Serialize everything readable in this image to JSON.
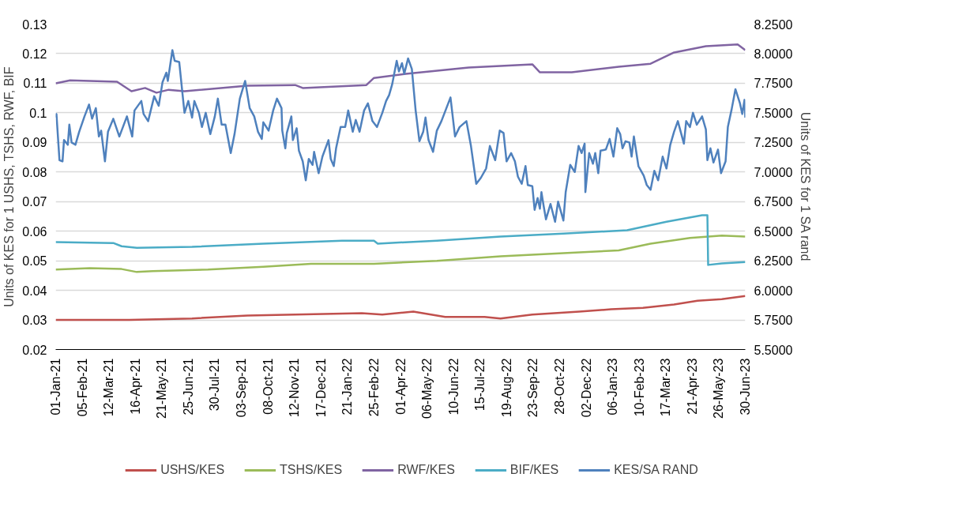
{
  "chart_data": {
    "type": "line",
    "ylabel": "Units of KES for 1 USHS, TSHS, RWF, BIF",
    "y2label": "Units of KES for 1 SA rand",
    "xlim": [
      "2021-01-01",
      "2023-06-30"
    ],
    "xticks": [
      {
        "value": "2021-01-01",
        "label": "01-Jan-21"
      },
      {
        "value": "2021-02-05",
        "label": "05-Feb-21"
      },
      {
        "value": "2021-03-12",
        "label": "12-Mar-21"
      },
      {
        "value": "2021-04-16",
        "label": "16-Apr-21"
      },
      {
        "value": "2021-05-21",
        "label": "21-May-21"
      },
      {
        "value": "2021-06-25",
        "label": "25-Jun-21"
      },
      {
        "value": "2021-07-30",
        "label": "30-Jul-21"
      },
      {
        "value": "2021-09-03",
        "label": "03-Sep-21"
      },
      {
        "value": "2021-10-08",
        "label": "08-Oct-21"
      },
      {
        "value": "2021-11-12",
        "label": "12-Nov-21"
      },
      {
        "value": "2021-12-17",
        "label": "17-Dec-21"
      },
      {
        "value": "2022-01-21",
        "label": "21-Jan-22"
      },
      {
        "value": "2022-02-25",
        "label": "25-Feb-22"
      },
      {
        "value": "2022-04-01",
        "label": "01-Apr-22"
      },
      {
        "value": "2022-05-06",
        "label": "06-May-22"
      },
      {
        "value": "2022-06-10",
        "label": "10-Jun-22"
      },
      {
        "value": "2022-07-15",
        "label": "15-Jul-22"
      },
      {
        "value": "2022-08-19",
        "label": "19-Aug-22"
      },
      {
        "value": "2022-09-23",
        "label": "23-Sep-22"
      },
      {
        "value": "2022-10-28",
        "label": "28-Oct-22"
      },
      {
        "value": "2022-12-02",
        "label": "02-Dec-22"
      },
      {
        "value": "2023-01-06",
        "label": "06-Jan-23"
      },
      {
        "value": "2023-02-10",
        "label": "10-Feb-23"
      },
      {
        "value": "2023-03-17",
        "label": "17-Mar-23"
      },
      {
        "value": "2023-04-21",
        "label": "21-Apr-23"
      },
      {
        "value": "2023-05-26",
        "label": "26-May-23"
      },
      {
        "value": "2023-06-30",
        "label": "30-Jun-23"
      }
    ],
    "ylim": [
      0.02,
      0.13
    ],
    "yticks": [
      0.02,
      0.03,
      0.04,
      0.05,
      0.06,
      0.07,
      0.08,
      0.09,
      0.1,
      0.11,
      0.12,
      0.13
    ],
    "y2lim": [
      5.5,
      8.25
    ],
    "y2ticks": [
      {
        "value": 5.5,
        "label": "5.5000"
      },
      {
        "value": 5.75,
        "label": "5.7500"
      },
      {
        "value": 6.0,
        "label": "6.0000"
      },
      {
        "value": 6.25,
        "label": "6.2500"
      },
      {
        "value": 6.5,
        "label": "6.5000"
      },
      {
        "value": 6.75,
        "label": "6.7500"
      },
      {
        "value": 7.0,
        "label": "7.0000"
      },
      {
        "value": 7.25,
        "label": "7.2500"
      },
      {
        "value": 7.5,
        "label": "7.5000"
      },
      {
        "value": 7.75,
        "label": "7.7500"
      },
      {
        "value": 8.0,
        "label": "8.0000"
      },
      {
        "value": 8.25,
        "label": "8.2500"
      }
    ],
    "grid": "y",
    "legend": "bottom",
    "line_style": "solid",
    "marker": "none",
    "series": [
      {
        "name": "USHS/KES",
        "color": "#c0504d",
        "x": [
          "2021-01-01",
          "2021-04-08",
          "2021-06-30",
          "2021-09-11",
          "2021-11-13",
          "2022-02-09",
          "2022-03-08",
          "2022-04-18",
          "2022-05-30",
          "2022-07-21",
          "2022-08-11",
          "2022-09-22",
          "2022-11-23",
          "2023-01-04",
          "2023-02-15",
          "2023-03-28",
          "2023-04-28",
          "2023-05-30",
          "2023-06-30"
        ],
        "values": [
          0.03,
          0.03,
          0.0305,
          0.0315,
          0.0318,
          0.0323,
          0.0318,
          0.0328,
          0.031,
          0.031,
          0.0305,
          0.0318,
          0.0328,
          0.0336,
          0.0341,
          0.0352,
          0.0365,
          0.037,
          0.0381
        ]
      },
      {
        "name": "TSHS/KES",
        "color": "#9bbb59",
        "x": [
          "2021-01-01",
          "2021-02-15",
          "2021-03-29",
          "2021-04-18",
          "2021-05-09",
          "2021-07-21",
          "2021-10-02",
          "2021-12-04",
          "2022-02-25",
          "2022-05-19",
          "2022-08-11",
          "2022-11-02",
          "2023-01-14",
          "2023-02-25",
          "2023-04-18",
          "2023-05-30",
          "2023-06-30"
        ],
        "values": [
          0.047,
          0.0475,
          0.0472,
          0.0462,
          0.0465,
          0.047,
          0.048,
          0.049,
          0.049,
          0.05,
          0.0515,
          0.0526,
          0.0535,
          0.0558,
          0.0577,
          0.0585,
          0.0582
        ]
      },
      {
        "name": "RWF/KES",
        "color": "#8064a2",
        "x": [
          "2021-01-01",
          "2021-01-20",
          "2021-03-23",
          "2021-04-11",
          "2021-04-29",
          "2021-05-14",
          "2021-05-30",
          "2021-06-20",
          "2021-09-11",
          "2021-11-13",
          "2021-11-23",
          "2022-02-15",
          "2022-02-25",
          "2022-04-08",
          "2022-06-30",
          "2022-09-22",
          "2022-10-02",
          "2022-11-13",
          "2023-01-14",
          "2023-02-25",
          "2023-03-28",
          "2023-05-09",
          "2023-06-20",
          "2023-06-30"
        ],
        "values": [
          0.11,
          0.111,
          0.1105,
          0.1073,
          0.1084,
          0.1068,
          0.1078,
          0.1073,
          0.1092,
          0.1094,
          0.1084,
          0.1094,
          0.1118,
          0.1132,
          0.1153,
          0.1164,
          0.1137,
          0.1137,
          0.1156,
          0.1166,
          0.1204,
          0.1225,
          0.1231,
          0.1212
        ]
      },
      {
        "name": "BIF/KES",
        "color": "#4bacc6",
        "x": [
          "2021-01-01",
          "2021-03-18",
          "2021-03-29",
          "2021-04-18",
          "2021-06-30",
          "2021-10-02",
          "2022-01-14",
          "2022-02-25",
          "2022-03-02",
          "2022-05-19",
          "2022-08-11",
          "2022-11-02",
          "2023-01-25",
          "2023-03-18",
          "2023-05-04",
          "2023-05-11",
          "2023-05-12",
          "2023-05-30",
          "2023-06-30"
        ],
        "values": [
          0.0563,
          0.056,
          0.0549,
          0.0544,
          0.0547,
          0.0558,
          0.0568,
          0.0568,
          0.0558,
          0.0568,
          0.0582,
          0.0592,
          0.0603,
          0.0632,
          0.0654,
          0.0654,
          0.0486,
          0.0491,
          0.0496
        ]
      },
      {
        "name": "KES/SA RAND",
        "color": "#4f81bd",
        "axis": "y2",
        "x": [
          "2021-01-01",
          "2021-01-02",
          "2021-01-06",
          "2021-01-10",
          "2021-01-12",
          "2021-01-17",
          "2021-01-19",
          "2021-01-22",
          "2021-01-27",
          "2021-02-01",
          "2021-02-08",
          "2021-02-14",
          "2021-02-18",
          "2021-02-23",
          "2021-02-27",
          "2021-03-02",
          "2021-03-07",
          "2021-03-11",
          "2021-03-18",
          "2021-03-26",
          "2021-04-05",
          "2021-04-12",
          "2021-04-15",
          "2021-04-24",
          "2021-04-27",
          "2021-05-03",
          "2021-05-11",
          "2021-05-17",
          "2021-05-22",
          "2021-05-27",
          "2021-05-29",
          "2021-06-04",
          "2021-06-07",
          "2021-06-13",
          "2021-06-18",
          "2021-06-20",
          "2021-06-25",
          "2021-06-30",
          "2021-07-03",
          "2021-07-09",
          "2021-07-13",
          "2021-07-18",
          "2021-07-24",
          "2021-07-30",
          "2021-08-03",
          "2021-08-08",
          "2021-08-13",
          "2021-08-20",
          "2021-08-25",
          "2021-09-01",
          "2021-09-08",
          "2021-09-14",
          "2021-09-20",
          "2021-09-25",
          "2021-09-30",
          "2021-10-02",
          "2021-10-09",
          "2021-10-15",
          "2021-10-20",
          "2021-10-26",
          "2021-10-27",
          "2021-10-31",
          "2021-11-02",
          "2021-11-08",
          "2021-11-10",
          "2021-11-15",
          "2021-11-18",
          "2021-11-23",
          "2021-11-27",
          "2021-12-01",
          "2021-12-06",
          "2021-12-08",
          "2021-12-14",
          "2021-12-19",
          "2021-12-27",
          "2021-12-30",
          "2022-01-03",
          "2022-01-06",
          "2022-01-12",
          "2022-01-18",
          "2022-01-22",
          "2022-01-28",
          "2022-02-01",
          "2022-02-06",
          "2022-02-12",
          "2022-02-17",
          "2022-02-23",
          "2022-03-01",
          "2022-03-08",
          "2022-03-13",
          "2022-03-17",
          "2022-03-21",
          "2022-03-27",
          "2022-03-30",
          "2022-04-03",
          "2022-04-06",
          "2022-04-11",
          "2022-04-16",
          "2022-04-21",
          "2022-04-26",
          "2022-05-01",
          "2022-05-04",
          "2022-05-08",
          "2022-05-14",
          "2022-05-19",
          "2022-05-25",
          "2022-05-31",
          "2022-06-06",
          "2022-06-12",
          "2022-06-18",
          "2022-06-27",
          "2022-07-03",
          "2022-07-10",
          "2022-07-16",
          "2022-07-23",
          "2022-07-28",
          "2022-08-04",
          "2022-08-10",
          "2022-08-15",
          "2022-08-19",
          "2022-08-25",
          "2022-08-30",
          "2022-09-03",
          "2022-09-08",
          "2022-09-13",
          "2022-09-16",
          "2022-09-22",
          "2022-09-25",
          "2022-09-29",
          "2022-10-02",
          "2022-10-04",
          "2022-10-07",
          "2022-10-10",
          "2022-10-16",
          "2022-10-22",
          "2022-10-26",
          "2022-11-02",
          "2022-11-05",
          "2022-11-11",
          "2022-11-17",
          "2022-11-22",
          "2022-11-26",
          "2022-11-30",
          "2022-12-01",
          "2022-12-06",
          "2022-12-11",
          "2022-12-14",
          "2022-12-18",
          "2022-12-21",
          "2022-12-28",
          "2023-01-02",
          "2023-01-07",
          "2023-01-12",
          "2023-01-16",
          "2023-01-19",
          "2023-01-23",
          "2023-01-28",
          "2023-01-31",
          "2023-02-03",
          "2023-02-09",
          "2023-02-16",
          "2023-02-20",
          "2023-02-25",
          "2023-03-02",
          "2023-03-07",
          "2023-03-13",
          "2023-03-18",
          "2023-03-23",
          "2023-03-28",
          "2023-04-02",
          "2023-04-10",
          "2023-04-13",
          "2023-04-18",
          "2023-04-22",
          "2023-04-27",
          "2023-05-04",
          "2023-05-09",
          "2023-05-11",
          "2023-05-15",
          "2023-05-19",
          "2023-05-25",
          "2023-05-29",
          "2023-06-04",
          "2023-06-07",
          "2023-06-12",
          "2023-06-17",
          "2023-06-23",
          "2023-06-26",
          "2023-06-29",
          "2023-06-30"
        ],
        "values": [
          7.46,
          7.49,
          7.1,
          7.09,
          7.27,
          7.23,
          7.4,
          7.25,
          7.23,
          7.34,
          7.47,
          7.57,
          7.45,
          7.54,
          7.3,
          7.35,
          7.09,
          7.34,
          7.45,
          7.3,
          7.47,
          7.3,
          7.52,
          7.6,
          7.49,
          7.43,
          7.64,
          7.56,
          7.76,
          7.84,
          7.77,
          8.03,
          7.94,
          7.93,
          7.62,
          7.5,
          7.6,
          7.46,
          7.6,
          7.5,
          7.38,
          7.5,
          7.32,
          7.47,
          7.62,
          7.4,
          7.4,
          7.16,
          7.32,
          7.62,
          7.77,
          7.54,
          7.47,
          7.34,
          7.28,
          7.42,
          7.35,
          7.52,
          7.62,
          7.54,
          7.35,
          7.2,
          7.33,
          7.47,
          7.27,
          7.37,
          7.18,
          7.09,
          6.93,
          7.11,
          7.06,
          7.17,
          6.99,
          7.13,
          7.27,
          7.11,
          7.05,
          7.2,
          7.38,
          7.38,
          7.52,
          7.34,
          7.44,
          7.34,
          7.52,
          7.58,
          7.43,
          7.38,
          7.5,
          7.6,
          7.65,
          7.74,
          7.94,
          7.85,
          7.92,
          7.83,
          7.96,
          7.87,
          7.52,
          7.26,
          7.34,
          7.46,
          7.27,
          7.17,
          7.35,
          7.43,
          7.53,
          7.63,
          7.3,
          7.38,
          7.43,
          7.22,
          6.9,
          6.95,
          7.03,
          7.22,
          7.1,
          7.35,
          7.33,
          7.09,
          7.16,
          7.09,
          6.96,
          6.9,
          7.05,
          6.89,
          6.88,
          6.68,
          6.78,
          6.69,
          6.83,
          6.71,
          6.6,
          6.73,
          6.58,
          6.75,
          6.59,
          6.83,
          7.06,
          7.0,
          7.22,
          7.16,
          7.24,
          6.83,
          7.16,
          7.07,
          7.16,
          6.99,
          7.18,
          7.19,
          7.28,
          7.13,
          7.37,
          7.32,
          7.2,
          7.26,
          7.25,
          7.13,
          7.3,
          7.05,
          6.97,
          6.89,
          6.85,
          7.01,
          6.93,
          7.13,
          7.03,
          7.23,
          7.34,
          7.43,
          7.24,
          7.43,
          7.38,
          7.5,
          7.4,
          7.47,
          7.36,
          7.1,
          7.2,
          7.08,
          7.19,
          6.99,
          7.09,
          7.38,
          7.53,
          7.7,
          7.58,
          7.49,
          7.61,
          7.46
        ]
      }
    ]
  }
}
